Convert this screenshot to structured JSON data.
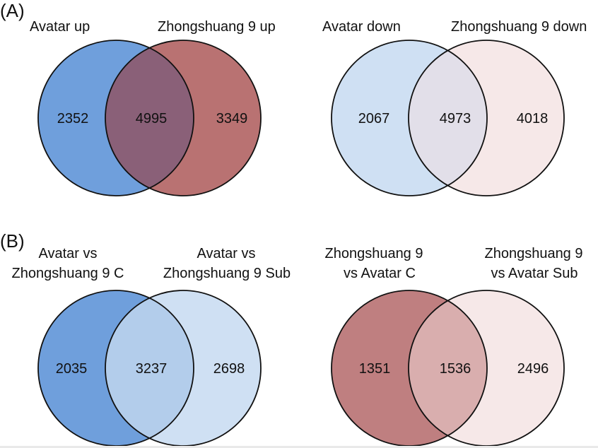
{
  "panels": [
    {
      "label": "(A)",
      "diagrams": [
        {
          "left_set": {
            "label_lines": [
              "Avatar up"
            ],
            "color": "#6f9fdc"
          },
          "right_set": {
            "label_lines": [
              "Zhongshuang 9 up"
            ],
            "color": "#b97272"
          },
          "overlap_color": "#8a6078",
          "counts": {
            "left_only": "2352",
            "both": "4995",
            "right_only": "3349"
          }
        },
        {
          "left_set": {
            "label_lines": [
              "Avatar down"
            ],
            "color": "#cfe0f3"
          },
          "right_set": {
            "label_lines": [
              "Zhongshuang 9 down"
            ],
            "color": "#f6e8e8"
          },
          "overlap_color": "#e2dfe9",
          "counts": {
            "left_only": "2067",
            "both": "4973",
            "right_only": "4018"
          }
        }
      ]
    },
    {
      "label": "(B)",
      "diagrams": [
        {
          "left_set": {
            "label_lines": [
              "Avatar vs",
              "Zhongshuang 9 C"
            ],
            "color": "#6f9fdc"
          },
          "right_set": {
            "label_lines": [
              "Avatar vs",
              "Zhongshuang 9 Sub"
            ],
            "color": "#cfe0f3"
          },
          "overlap_color": "#b3cdeb",
          "counts": {
            "left_only": "2035",
            "both": "3237",
            "right_only": "2698"
          }
        },
        {
          "left_set": {
            "label_lines": [
              "Zhongshuang 9",
              "vs Avatar C"
            ],
            "color": "#bf7f80"
          },
          "right_set": {
            "label_lines": [
              "Zhongshuang 9",
              "vs Avatar Sub"
            ],
            "color": "#f6e8e8"
          },
          "overlap_color": "#d9aeae",
          "counts": {
            "left_only": "1351",
            "both": "1536",
            "right_only": "2496"
          }
        }
      ]
    }
  ]
}
